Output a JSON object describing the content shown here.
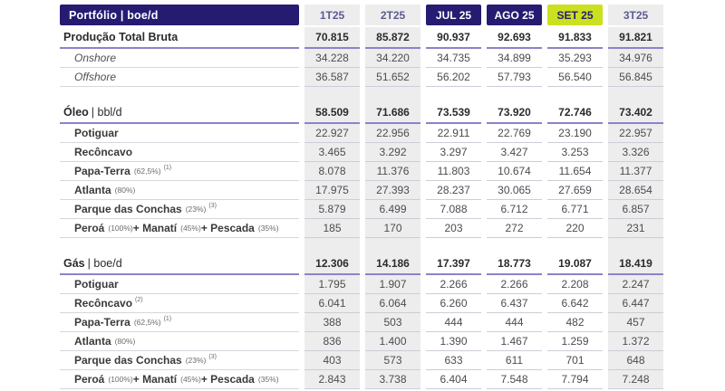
{
  "colors": {
    "header_navy": "#251c72",
    "highlight_lime": "#cbe01f",
    "quarter_header_text": "#5b5b94",
    "column_strip_grey": "#ededed",
    "section_underline_purple": "#8a84c8",
    "row_line_grey": "#cdcdd8",
    "section_text": "#2b2b2b",
    "item_text": "#3a3a3a"
  },
  "chart_data": {
    "type": "table",
    "title": "Portfólio | boe/d",
    "columns": [
      {
        "label": "1T25",
        "style": "quarter"
      },
      {
        "label": "2T25",
        "style": "quarter"
      },
      {
        "label": "JUL 25",
        "style": "month"
      },
      {
        "label": "AGO 25",
        "style": "month"
      },
      {
        "label": "SET 25",
        "style": "highlight"
      },
      {
        "label": "3T25",
        "style": "quarter"
      }
    ],
    "rows": [
      {
        "t": "section",
        "parts": [
          [
            "main",
            "Produção Total Bruta"
          ]
        ],
        "v": [
          "70.815",
          "85.872",
          "90.937",
          "92.693",
          "91.833",
          "91.821"
        ]
      },
      {
        "t": "item",
        "italic": true,
        "parts": [
          [
            "main",
            "Onshore"
          ]
        ],
        "v": [
          "34.228",
          "34.220",
          "34.735",
          "34.899",
          "35.293",
          "34.976"
        ]
      },
      {
        "t": "item",
        "italic": true,
        "parts": [
          [
            "main",
            "Offshore"
          ]
        ],
        "v": [
          "36.587",
          "51.652",
          "56.202",
          "57.793",
          "56.540",
          "56.845"
        ]
      },
      {
        "t": "gap"
      },
      {
        "t": "section",
        "parts": [
          [
            "main",
            "Óleo"
          ],
          [
            "unit",
            "| bbl/d"
          ]
        ],
        "v": [
          "58.509",
          "71.686",
          "73.539",
          "73.920",
          "72.746",
          "73.402"
        ]
      },
      {
        "t": "item",
        "parts": [
          [
            "main",
            "Potiguar"
          ]
        ],
        "v": [
          "22.927",
          "22.956",
          "22.911",
          "22.769",
          "23.190",
          "22.957"
        ]
      },
      {
        "t": "item",
        "parts": [
          [
            "main",
            "Recôncavo"
          ]
        ],
        "v": [
          "3.465",
          "3.292",
          "3.297",
          "3.427",
          "3.253",
          "3.326"
        ]
      },
      {
        "t": "item",
        "parts": [
          [
            "main",
            "Papa-Terra"
          ],
          [
            "pct",
            "(62,5%)"
          ],
          [
            "sup",
            "(1)"
          ]
        ],
        "v": [
          "8.078",
          "11.376",
          "11.803",
          "10.674",
          "11.654",
          "11.377"
        ]
      },
      {
        "t": "item",
        "parts": [
          [
            "main",
            "Atlanta"
          ],
          [
            "pct",
            "(80%)"
          ]
        ],
        "v": [
          "17.975",
          "27.393",
          "28.237",
          "30.065",
          "27.659",
          "28.654"
        ]
      },
      {
        "t": "item",
        "parts": [
          [
            "main",
            "Parque das Conchas"
          ],
          [
            "pct",
            "(23%)"
          ],
          [
            "sup",
            "(3)"
          ]
        ],
        "v": [
          "5.879",
          "6.499",
          "7.088",
          "6.712",
          "6.771",
          "6.857"
        ]
      },
      {
        "t": "item",
        "parts": [
          [
            "main",
            "Peroá"
          ],
          [
            "pct",
            "(100%)"
          ],
          [
            "main",
            "+ Manatí"
          ],
          [
            "pct",
            "(45%)"
          ],
          [
            "main",
            "+ Pescada"
          ],
          [
            "pct",
            "(35%)"
          ]
        ],
        "v": [
          "185",
          "170",
          "203",
          "272",
          "220",
          "231"
        ]
      },
      {
        "t": "gap"
      },
      {
        "t": "section",
        "parts": [
          [
            "main",
            "Gás"
          ],
          [
            "unit",
            "| boe/d"
          ]
        ],
        "v": [
          "12.306",
          "14.186",
          "17.397",
          "18.773",
          "19.087",
          "18.419"
        ]
      },
      {
        "t": "item",
        "parts": [
          [
            "main",
            "Potiguar"
          ]
        ],
        "v": [
          "1.795",
          "1.907",
          "2.266",
          "2.266",
          "2.208",
          "2.247"
        ]
      },
      {
        "t": "item",
        "parts": [
          [
            "main",
            "Recôncavo"
          ],
          [
            "sup",
            "(2)"
          ]
        ],
        "v": [
          "6.041",
          "6.064",
          "6.260",
          "6.437",
          "6.642",
          "6.447"
        ]
      },
      {
        "t": "item",
        "parts": [
          [
            "main",
            "Papa-Terra"
          ],
          [
            "pct",
            "(62,5%)"
          ],
          [
            "sup",
            "(1)"
          ]
        ],
        "v": [
          "388",
          "503",
          "444",
          "444",
          "482",
          "457"
        ]
      },
      {
        "t": "item",
        "parts": [
          [
            "main",
            "Atlanta"
          ],
          [
            "pct",
            "(80%)"
          ]
        ],
        "v": [
          "836",
          "1.400",
          "1.390",
          "1.467",
          "1.259",
          "1.372"
        ]
      },
      {
        "t": "item",
        "parts": [
          [
            "main",
            "Parque das Conchas"
          ],
          [
            "pct",
            "(23%)"
          ],
          [
            "sup",
            "(3)"
          ]
        ],
        "v": [
          "403",
          "573",
          "633",
          "611",
          "701",
          "648"
        ]
      },
      {
        "t": "item",
        "parts": [
          [
            "main",
            "Peroá"
          ],
          [
            "pct",
            "(100%)"
          ],
          [
            "main",
            "+ Manatí"
          ],
          [
            "pct",
            "(45%)"
          ],
          [
            "main",
            "+ Pescada"
          ],
          [
            "pct",
            "(35%)"
          ]
        ],
        "v": [
          "2.843",
          "3.738",
          "6.404",
          "7.548",
          "7.794",
          "7.248"
        ]
      }
    ]
  }
}
